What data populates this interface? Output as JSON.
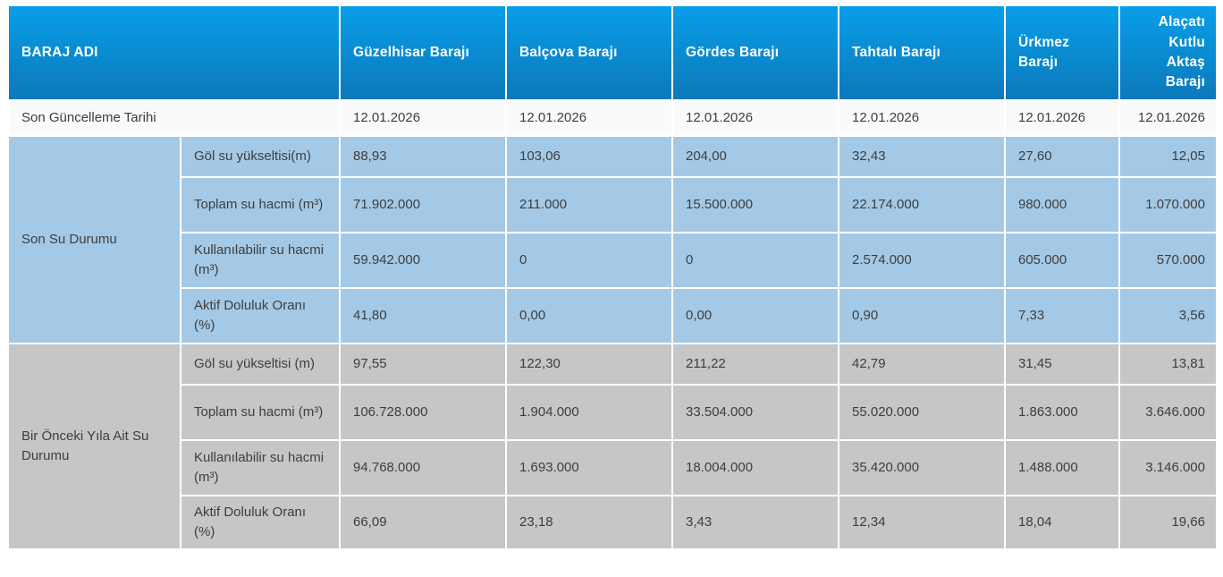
{
  "chart_data": {
    "type": "table",
    "corner_header": "BARAJ ADI",
    "columns": [
      "Güzelhisar Barajı",
      "Balçova Barajı",
      "Gördes Barajı",
      "Tahtalı Barajı",
      "Ürkmez Barajı",
      "Alaçatı Kutlu Aktaş Barajı"
    ],
    "update_row": {
      "label": "Son Güncelleme Tarihi",
      "values": [
        "12.01.2026",
        "12.01.2026",
        "12.01.2026",
        "12.01.2026",
        "12.01.2026",
        "12.01.2026"
      ]
    },
    "sections": [
      {
        "label": "Son Su Durumu",
        "rows": [
          {
            "metric": "Göl su yükseltisi(m)",
            "values": [
              "88,93",
              "103,06",
              "204,00",
              "32,43",
              "27,60",
              "12,05"
            ]
          },
          {
            "metric": "Toplam su hacmi (m³)",
            "values": [
              "71.902.000",
              "211.000",
              "15.500.000",
              "22.174.000",
              "980.000",
              "1.070.000"
            ]
          },
          {
            "metric": "Kullanılabilir su hacmi (m³)",
            "values": [
              "59.942.000",
              "0",
              "0",
              "2.574.000",
              "605.000",
              "570.000"
            ]
          },
          {
            "metric": "Aktif Doluluk Oranı (%)",
            "values": [
              "41,80",
              "0,00",
              "0,00",
              "0,90",
              "7,33",
              "3,56"
            ]
          }
        ]
      },
      {
        "label": "Bir Önceki Yıla Ait Su Durumu",
        "rows": [
          {
            "metric": "Göl su yükseltisi (m)",
            "values": [
              "97,55",
              "122,30",
              "211,22",
              "42,79",
              "31,45",
              "13,81"
            ]
          },
          {
            "metric": "Toplam su hacmi (m³)",
            "values": [
              "106.728.000",
              "1.904.000",
              "33.504.000",
              "55.020.000",
              "1.863.000",
              "3.646.000"
            ]
          },
          {
            "metric": "Kullanılabilir su hacmi (m³)",
            "values": [
              "94.768.000",
              "1.693.000",
              "18.004.000",
              "35.420.000",
              "1.488.000",
              "3.146.000"
            ]
          },
          {
            "metric": "Aktif Doluluk Oranı (%)",
            "values": [
              "66,09",
              "23,18",
              "3,43",
              "12,34",
              "18,04",
              "19,66"
            ]
          }
        ]
      }
    ],
    "colors": {
      "header_gradient_top": "#089ee9",
      "header_gradient_bottom": "#0c79ba",
      "header_text": "#ffffff",
      "current_section_bg": "#a4c9e6",
      "previous_section_bg": "#c5c6c5",
      "update_row_bg": "#fafafa",
      "body_text": "#3e3e3e",
      "cell_border": "#ffffff"
    }
  }
}
